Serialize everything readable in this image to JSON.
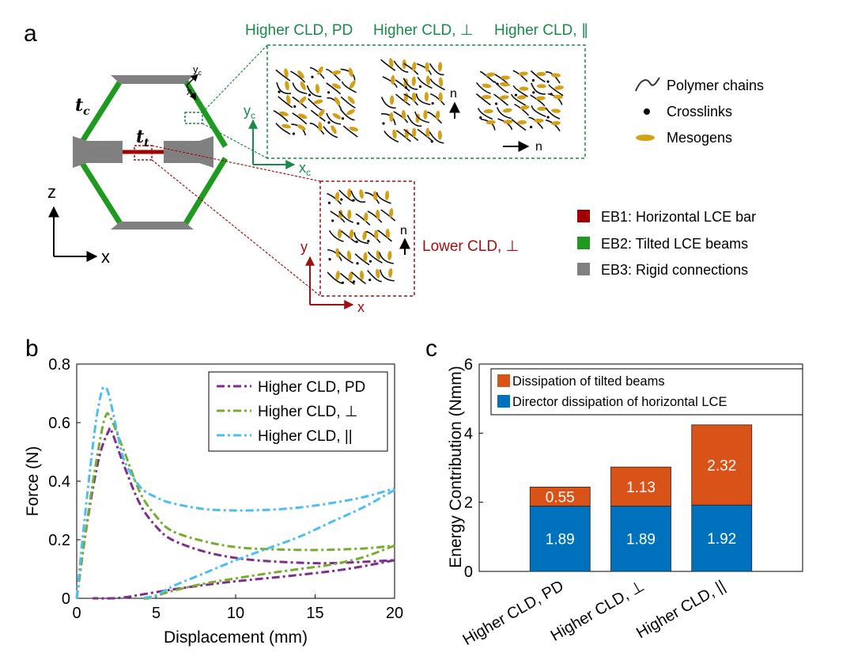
{
  "panel_labels": {
    "a": "a",
    "b": "b",
    "c": "c"
  },
  "panel_a": {
    "hex_labels": {
      "t_c": "t",
      "t_c_sub": "c",
      "t_t": "t",
      "t_t_sub": "t"
    },
    "local_axes": {
      "yc": "y",
      "yc_sub": "c",
      "xc": "x",
      "xc_sub": "c"
    },
    "global_axes": {
      "z": "z",
      "x": "x"
    },
    "green_titles": [
      "Higher CLD, PD",
      "Higher CLD, ⊥",
      "Higher CLD, ∥"
    ],
    "green_axes": {
      "y": "y",
      "y_sub": "c",
      "x": "x",
      "x_sub": "c"
    },
    "director_labels": {
      "n_up": "n",
      "n_right": "n",
      "n_red": "n"
    },
    "red_title": "Lower CLD, ⊥",
    "red_axes": {
      "y": "y",
      "x": "x"
    },
    "legend_materials": [
      {
        "label": "Polymer chains",
        "kind": "chain"
      },
      {
        "label": "Crosslinks",
        "kind": "dot"
      },
      {
        "label": "Mesogens",
        "kind": "ellipse"
      }
    ],
    "legend_regions": [
      {
        "label": "EB1: Horizontal LCE bar",
        "color": "#a00000"
      },
      {
        "label": "EB2: Tilted LCE beams",
        "color": "#1e9a1e"
      },
      {
        "label": "EB3: Rigid connections",
        "color": "#808080"
      }
    ],
    "colors": {
      "green": "#1a8a4a",
      "red": "#a01010",
      "mesogen": "#d4a017",
      "beam": "#1e9a1e",
      "bar": "#a00000",
      "rigid": "#808080"
    }
  },
  "chart_data": [
    {
      "type": "line",
      "panel": "b",
      "xlabel": "Displacement (mm)",
      "ylabel": "Force (N)",
      "xlim": [
        0,
        20
      ],
      "ylim": [
        0,
        0.8
      ],
      "xticks": [
        "0",
        "5",
        "10",
        "15",
        "20"
      ],
      "yticks": [
        "0",
        "0.2",
        "0.4",
        "0.6",
        "0.8"
      ],
      "legend_position": "top-right",
      "series": [
        {
          "name": "Higher CLD, PD",
          "color": "#7e2f8e",
          "loading": [
            [
              0,
              0
            ],
            [
              0.5,
              0.2
            ],
            [
              1,
              0.37
            ],
            [
              1.5,
              0.5
            ],
            [
              2,
              0.57
            ],
            [
              2.2,
              0.57
            ],
            [
              3,
              0.45
            ],
            [
              4,
              0.32
            ],
            [
              5,
              0.245
            ],
            [
              6,
              0.2
            ],
            [
              8,
              0.16
            ],
            [
              10,
              0.138
            ],
            [
              12,
              0.127
            ],
            [
              15,
              0.12
            ],
            [
              17,
              0.122
            ],
            [
              20,
              0.13
            ]
          ],
          "unloading": [
            [
              20,
              0.13
            ],
            [
              17,
              0.1
            ],
            [
              14,
              0.08
            ],
            [
              10,
              0.058
            ],
            [
              8,
              0.045
            ],
            [
              6,
              0.03
            ],
            [
              4,
              0.012
            ],
            [
              3,
              0.003
            ],
            [
              2.2,
              0
            ],
            [
              1,
              0
            ]
          ]
        },
        {
          "name": "Higher CLD, ⊥",
          "color": "#77ac30",
          "loading": [
            [
              0,
              0
            ],
            [
              0.5,
              0.2
            ],
            [
              1,
              0.39
            ],
            [
              1.5,
              0.55
            ],
            [
              1.8,
              0.62
            ],
            [
              2.1,
              0.62
            ],
            [
              3,
              0.5
            ],
            [
              4,
              0.36
            ],
            [
              5,
              0.28
            ],
            [
              6,
              0.23
            ],
            [
              8,
              0.195
            ],
            [
              10,
              0.175
            ],
            [
              12,
              0.168
            ],
            [
              15,
              0.165
            ],
            [
              18,
              0.17
            ],
            [
              20,
              0.18
            ]
          ],
          "unloading": [
            [
              20,
              0.18
            ],
            [
              18,
              0.14
            ],
            [
              16,
              0.115
            ],
            [
              14,
              0.1
            ],
            [
              12,
              0.085
            ],
            [
              10,
              0.068
            ],
            [
              8,
              0.05
            ],
            [
              6,
              0.025
            ],
            [
              5,
              0.008
            ],
            [
              4.5,
              0
            ],
            [
              4,
              0
            ]
          ]
        },
        {
          "name": "Higher CLD, ||",
          "color": "#4dbeee",
          "loading": [
            [
              0,
              0
            ],
            [
              0.4,
              0.22
            ],
            [
              0.8,
              0.42
            ],
            [
              1.2,
              0.6
            ],
            [
              1.5,
              0.69
            ],
            [
              1.7,
              0.72
            ],
            [
              2,
              0.7
            ],
            [
              2.5,
              0.58
            ],
            [
              3,
              0.47
            ],
            [
              4,
              0.38
            ],
            [
              5,
              0.345
            ],
            [
              6,
              0.325
            ],
            [
              8,
              0.305
            ],
            [
              10,
              0.3
            ],
            [
              12,
              0.302
            ],
            [
              14,
              0.31
            ],
            [
              16,
              0.325
            ],
            [
              18,
              0.345
            ],
            [
              20,
              0.375
            ]
          ],
          "unloading": [
            [
              20,
              0.37
            ],
            [
              18,
              0.31
            ],
            [
              16,
              0.26
            ],
            [
              14,
              0.21
            ],
            [
              12,
              0.17
            ],
            [
              10,
              0.13
            ],
            [
              8,
              0.085
            ],
            [
              6,
              0.04
            ],
            [
              5,
              0.01
            ],
            [
              4,
              0
            ]
          ]
        }
      ]
    },
    {
      "type": "bar",
      "panel": "c",
      "stacked": true,
      "ylabel": "Energy Contribution (Nmm)",
      "ylim": [
        0,
        6
      ],
      "yticks": [
        "0",
        "2",
        "4",
        "6"
      ],
      "categories": [
        "Higher CLD, PD",
        "Higher CLD, ⊥",
        "Higher CLD, ||"
      ],
      "legend_position": "top",
      "series": [
        {
          "name": "Director dissipation of horizontal LCE",
          "color": "#0072bd",
          "values": [
            1.89,
            1.89,
            1.92
          ],
          "labels": [
            "1.89",
            "1.89",
            "1.92"
          ]
        },
        {
          "name": "Dissipation of tilted beams",
          "color": "#d95319",
          "values": [
            0.55,
            1.13,
            2.32
          ],
          "labels": [
            "0.55",
            "1.13",
            "2.32"
          ]
        }
      ],
      "legend_order": [
        "Dissipation of tilted beams",
        "Director dissipation of horizontal LCE"
      ]
    }
  ]
}
